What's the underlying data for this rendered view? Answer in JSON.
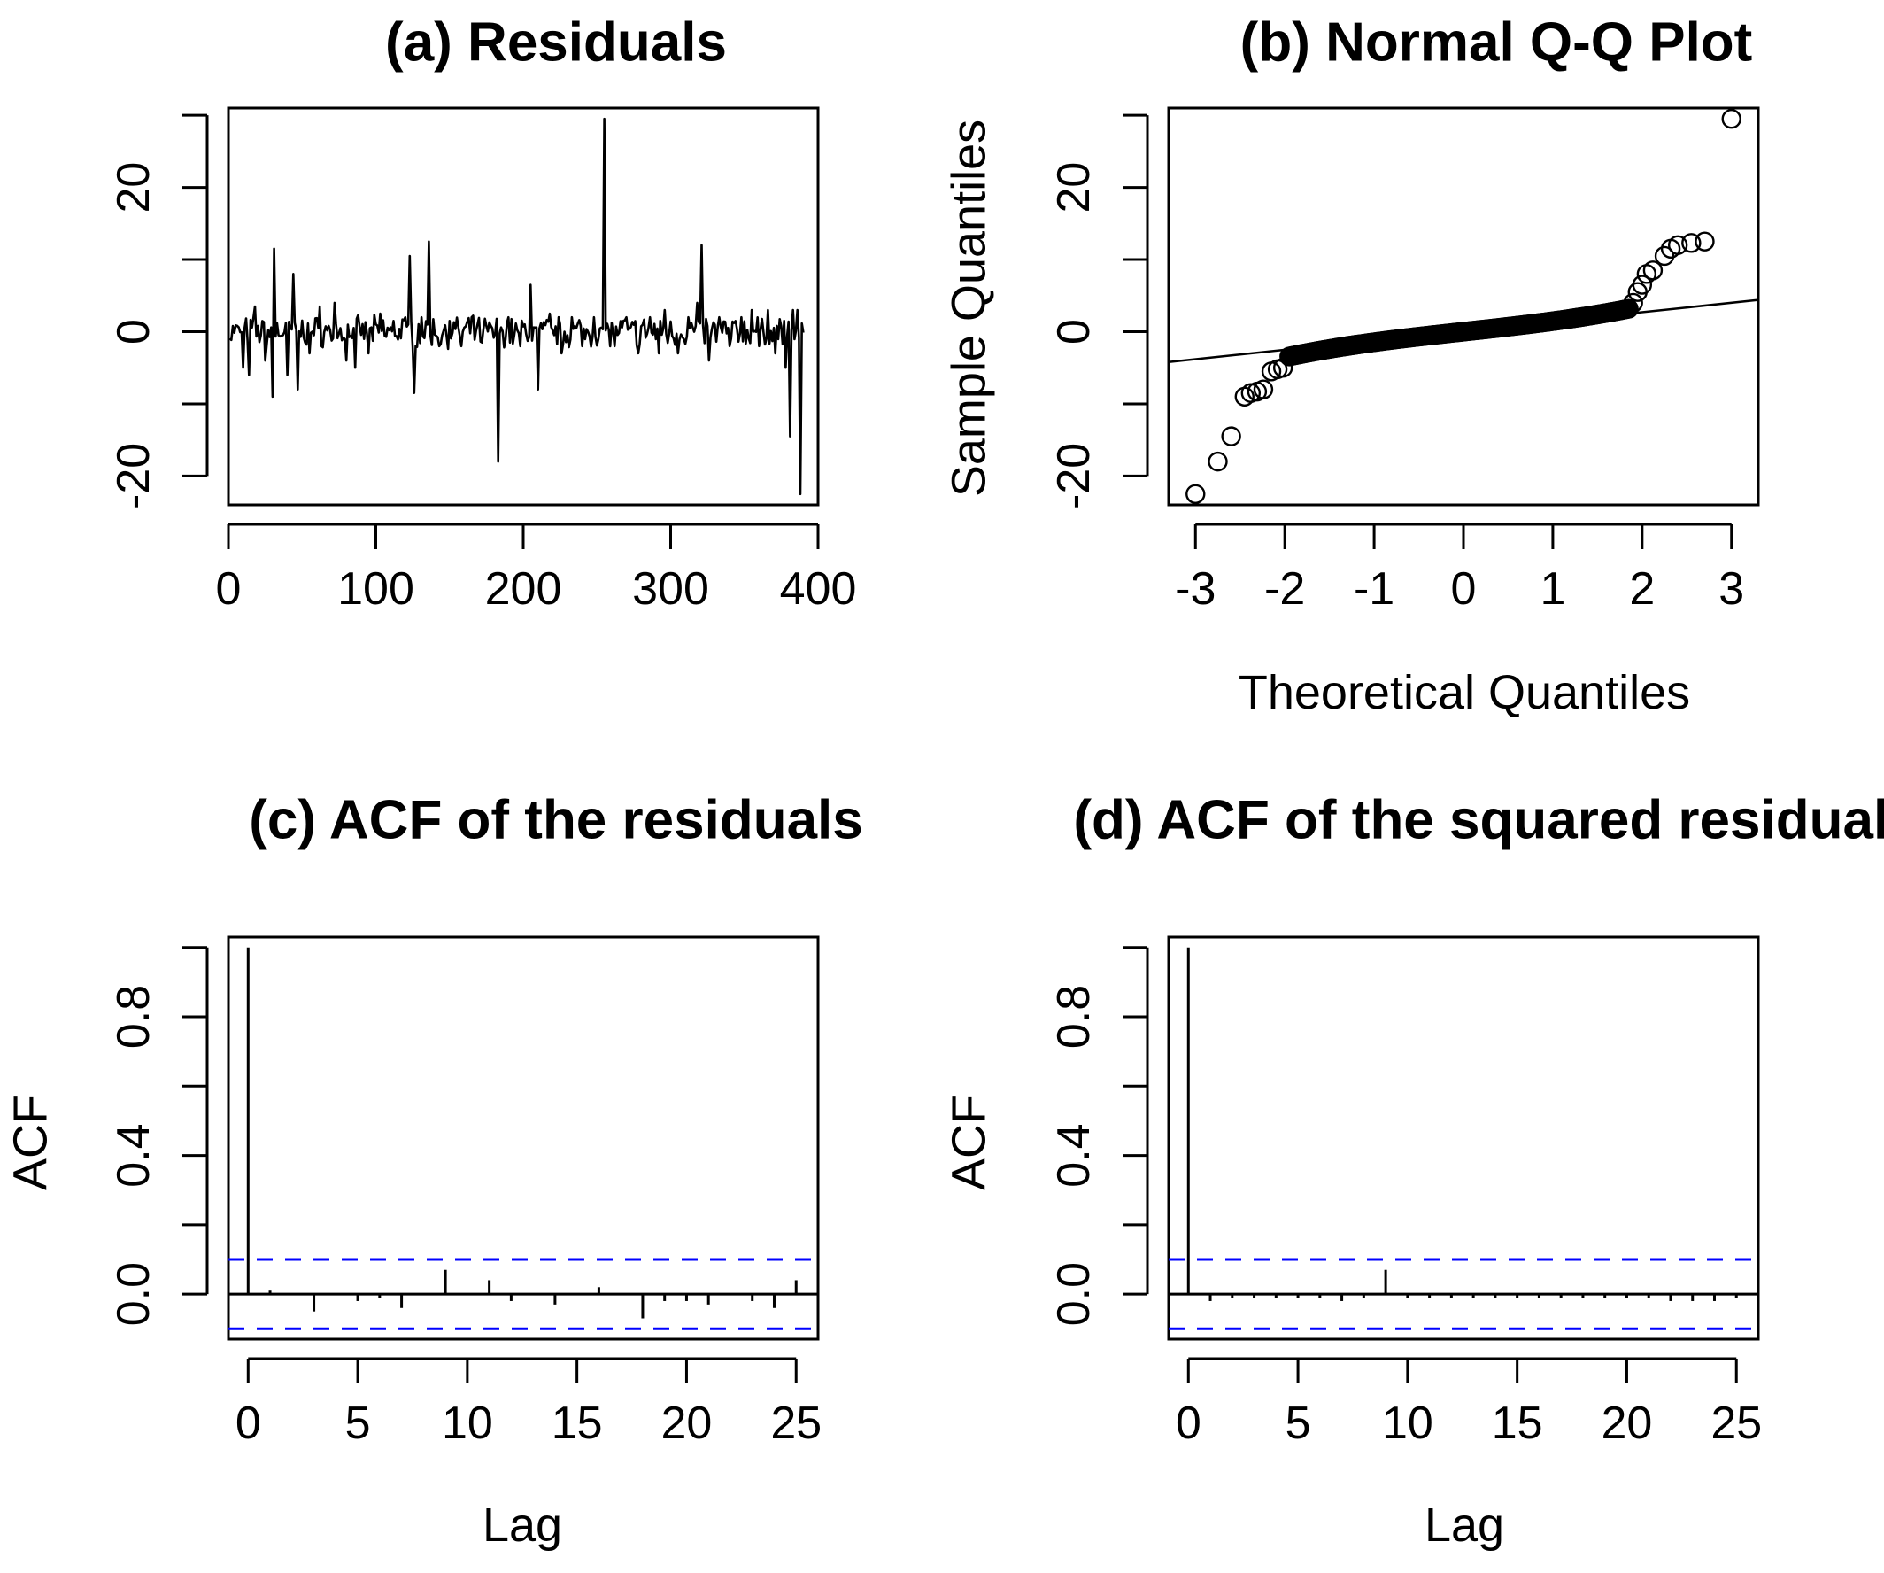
{
  "chart_data": [
    {
      "type": "line",
      "panel": "a",
      "title": "(a)  Residuals",
      "xlabel": "",
      "ylabel": "",
      "xlim": [
        0,
        400
      ],
      "ylim": [
        -24,
        31
      ],
      "xticks": [
        0,
        100,
        200,
        300,
        400
      ],
      "xtick_labels": [
        "0",
        "100",
        "200",
        "300",
        "400"
      ],
      "yticks": [
        -20,
        -10,
        0,
        10,
        20,
        30
      ],
      "ytick_labels": [
        "-20",
        "",
        "0",
        "",
        "20",
        ""
      ],
      "grid": false,
      "n": 390,
      "spikes": [
        {
          "x": 10,
          "y": -5
        },
        {
          "x": 14,
          "y": -6
        },
        {
          "x": 18,
          "y": 3.5
        },
        {
          "x": 25,
          "y": -4
        },
        {
          "x": 30,
          "y": -9
        },
        {
          "x": 31,
          "y": 11.5
        },
        {
          "x": 40,
          "y": -6
        },
        {
          "x": 44,
          "y": 8
        },
        {
          "x": 47,
          "y": -8
        },
        {
          "x": 55,
          "y": -3
        },
        {
          "x": 62,
          "y": 3.5
        },
        {
          "x": 72,
          "y": 4
        },
        {
          "x": 80,
          "y": -4
        },
        {
          "x": 86,
          "y": -5
        },
        {
          "x": 95,
          "y": -3
        },
        {
          "x": 103,
          "y": 2.5
        },
        {
          "x": 112,
          "y": 1.5
        },
        {
          "x": 120,
          "y": 2
        },
        {
          "x": 123,
          "y": 10.5
        },
        {
          "x": 126,
          "y": -8.5
        },
        {
          "x": 131,
          "y": 2
        },
        {
          "x": 136,
          "y": 12.5
        },
        {
          "x": 143,
          "y": -2
        },
        {
          "x": 150,
          "y": 1.5
        },
        {
          "x": 158,
          "y": -2
        },
        {
          "x": 165,
          "y": 2
        },
        {
          "x": 172,
          "y": -1.5
        },
        {
          "x": 183,
          "y": -18
        },
        {
          "x": 190,
          "y": 2
        },
        {
          "x": 198,
          "y": -2
        },
        {
          "x": 205,
          "y": 6.5
        },
        {
          "x": 210,
          "y": -8
        },
        {
          "x": 218,
          "y": 2.5
        },
        {
          "x": 226,
          "y": -3
        },
        {
          "x": 233,
          "y": 2
        },
        {
          "x": 240,
          "y": -2
        },
        {
          "x": 248,
          "y": 2
        },
        {
          "x": 255,
          "y": 29.5
        },
        {
          "x": 262,
          "y": -2
        },
        {
          "x": 270,
          "y": 2
        },
        {
          "x": 278,
          "y": -3
        },
        {
          "x": 286,
          "y": 2
        },
        {
          "x": 292,
          "y": -3
        },
        {
          "x": 296,
          "y": 3
        },
        {
          "x": 305,
          "y": -3
        },
        {
          "x": 312,
          "y": 2
        },
        {
          "x": 318,
          "y": 4
        },
        {
          "x": 321,
          "y": 12
        },
        {
          "x": 326,
          "y": -4
        },
        {
          "x": 333,
          "y": 2
        },
        {
          "x": 340,
          "y": -2
        },
        {
          "x": 348,
          "y": 2
        },
        {
          "x": 355,
          "y": 3
        },
        {
          "x": 360,
          "y": -2
        },
        {
          "x": 366,
          "y": 3
        },
        {
          "x": 371,
          "y": -3
        },
        {
          "x": 378,
          "y": -5
        },
        {
          "x": 381,
          "y": -14.5
        },
        {
          "x": 383,
          "y": 3
        },
        {
          "x": 386,
          "y": 3
        },
        {
          "x": 388,
          "y": -22.5
        }
      ]
    },
    {
      "type": "scatter",
      "panel": "b",
      "title": "(b)  Normal Q-Q Plot",
      "xlabel": "Theoretical Quantiles",
      "ylabel": "Sample Quantiles",
      "xlim": [
        -3.3,
        3.3
      ],
      "ylim": [
        -24,
        31
      ],
      "xticks": [
        -3,
        -2,
        -1,
        0,
        1,
        2,
        3
      ],
      "xtick_labels": [
        "-3",
        "-2",
        "-1",
        "0",
        "1",
        "2",
        "3"
      ],
      "yticks": [
        -20,
        -10,
        0,
        10,
        20,
        30
      ],
      "ytick_labels": [
        "-20",
        "",
        "0",
        "",
        "20",
        ""
      ],
      "grid": false,
      "reference_line": {
        "x": [
          -3.3,
          3.3
        ],
        "y": [
          -4.2,
          4.4
        ]
      },
      "points": [
        {
          "x": -3.0,
          "y": -22.5
        },
        {
          "x": -2.75,
          "y": -18
        },
        {
          "x": -2.6,
          "y": -14.5
        },
        {
          "x": -2.45,
          "y": -9
        },
        {
          "x": -2.38,
          "y": -8.5
        },
        {
          "x": -2.31,
          "y": -8.3
        },
        {
          "x": -2.24,
          "y": -8.0
        },
        {
          "x": -2.15,
          "y": -5.5
        },
        {
          "x": -2.08,
          "y": -5.2
        },
        {
          "x": -2.02,
          "y": -5.0
        },
        {
          "x": 1.9,
          "y": 4.0
        },
        {
          "x": 1.95,
          "y": 5.5
        },
        {
          "x": 2.0,
          "y": 6.5
        },
        {
          "x": 2.05,
          "y": 8.0
        },
        {
          "x": 2.12,
          "y": 8.5
        },
        {
          "x": 2.25,
          "y": 10.5
        },
        {
          "x": 2.32,
          "y": 11.5
        },
        {
          "x": 2.4,
          "y": 12.0
        },
        {
          "x": 2.55,
          "y": 12.3
        },
        {
          "x": 2.7,
          "y": 12.5
        },
        {
          "x": 3.0,
          "y": 29.5
        }
      ]
    },
    {
      "type": "bar",
      "panel": "c",
      "title": "(c)  ACF of the residuals",
      "xlabel": "Lag",
      "ylabel": "ACF",
      "xlim": [
        -0.9,
        26
      ],
      "ylim": [
        -0.13,
        1.03
      ],
      "xticks": [
        0,
        5,
        10,
        15,
        20,
        25
      ],
      "xtick_labels": [
        "0",
        "5",
        "10",
        "15",
        "20",
        "25"
      ],
      "yticks": [
        0.0,
        0.2,
        0.4,
        0.6,
        0.8,
        1.0
      ],
      "ytick_labels": [
        "0.0",
        "",
        "0.4",
        "",
        "0.8",
        ""
      ],
      "grid": false,
      "ci": 0.1,
      "lags": [
        0,
        1,
        2,
        3,
        4,
        5,
        6,
        7,
        8,
        9,
        10,
        11,
        12,
        13,
        14,
        15,
        16,
        17,
        18,
        19,
        20,
        21,
        22,
        23,
        24,
        25
      ],
      "values": [
        1.0,
        0.01,
        0.0,
        -0.05,
        0.0,
        -0.02,
        -0.01,
        -0.04,
        0.0,
        0.07,
        0.0,
        0.04,
        -0.02,
        0.0,
        -0.03,
        0.0,
        0.02,
        0.0,
        -0.07,
        -0.02,
        -0.02,
        -0.03,
        0.0,
        -0.02,
        -0.04,
        0.04
      ]
    },
    {
      "type": "bar",
      "panel": "d",
      "title": "(d)  ACF of the squared residuals",
      "xlabel": "Lag",
      "ylabel": "ACF",
      "xlim": [
        -0.9,
        26
      ],
      "ylim": [
        -0.13,
        1.03
      ],
      "xticks": [
        0,
        5,
        10,
        15,
        20,
        25
      ],
      "xtick_labels": [
        "0",
        "5",
        "10",
        "15",
        "20",
        "25"
      ],
      "yticks": [
        0.0,
        0.2,
        0.4,
        0.6,
        0.8,
        1.0
      ],
      "ytick_labels": [
        "0.0",
        "",
        "0.4",
        "",
        "0.8",
        ""
      ],
      "grid": false,
      "ci": 0.1,
      "lags": [
        0,
        1,
        2,
        3,
        4,
        5,
        6,
        7,
        8,
        9,
        10,
        11,
        12,
        13,
        14,
        15,
        16,
        17,
        18,
        19,
        20,
        21,
        22,
        23,
        24,
        25
      ],
      "values": [
        1.0,
        -0.02,
        -0.01,
        -0.01,
        -0.01,
        -0.01,
        -0.01,
        -0.02,
        -0.01,
        0.07,
        -0.01,
        -0.01,
        -0.01,
        -0.01,
        -0.01,
        -0.01,
        -0.01,
        -0.01,
        -0.01,
        -0.01,
        -0.01,
        -0.01,
        -0.02,
        -0.02,
        -0.02,
        -0.01
      ]
    }
  ],
  "colors": {
    "ink": "#000000",
    "ci_line": "#0000ff",
    "background": "#ffffff"
  }
}
